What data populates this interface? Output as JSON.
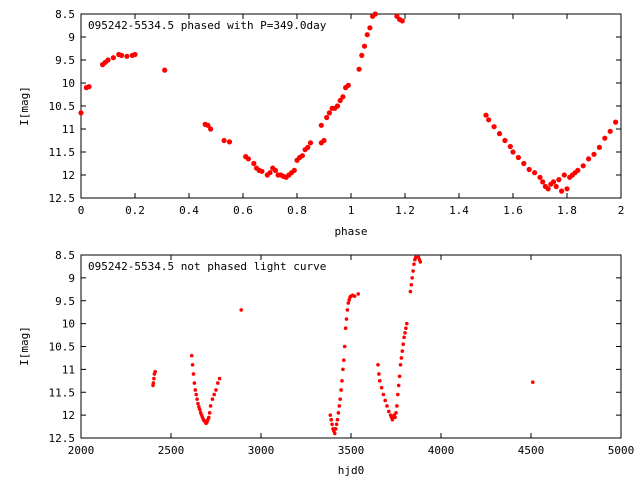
{
  "chart_data": [
    {
      "type": "scatter",
      "title": "095242-5534.5 phased with P=349.0day",
      "xlabel": "phase",
      "ylabel": "I[mag]",
      "xlim": [
        0,
        2
      ],
      "ylim": [
        12.5,
        8.5
      ],
      "y_inverted": true,
      "xticks": [
        "0",
        "0.2",
        "0.4",
        "0.6",
        "0.8",
        "1",
        "1.2",
        "1.4",
        "1.6",
        "1.8",
        "2"
      ],
      "yticks": [
        "8.5",
        "9",
        "9.5",
        "10",
        "10.5",
        "11",
        "11.5",
        "12",
        "12.5"
      ],
      "marker_color": "#ff0000",
      "grid": false,
      "series": [
        {
          "points": [
            [
              0.0,
              10.65
            ],
            [
              0.02,
              10.1
            ],
            [
              0.03,
              10.08
            ],
            [
              0.08,
              9.6
            ],
            [
              0.09,
              9.55
            ],
            [
              0.1,
              9.5
            ],
            [
              0.12,
              9.45
            ],
            [
              0.14,
              9.38
            ],
            [
              0.15,
              9.4
            ],
            [
              0.17,
              9.42
            ],
            [
              0.19,
              9.4
            ],
            [
              0.2,
              9.38
            ],
            [
              0.31,
              9.72
            ],
            [
              0.46,
              10.9
            ],
            [
              0.47,
              10.92
            ],
            [
              0.48,
              11.0
            ],
            [
              0.53,
              11.25
            ],
            [
              0.55,
              11.28
            ],
            [
              0.61,
              11.6
            ],
            [
              0.62,
              11.65
            ],
            [
              0.64,
              11.75
            ],
            [
              0.65,
              11.85
            ],
            [
              0.66,
              11.9
            ],
            [
              0.67,
              11.92
            ],
            [
              0.69,
              12.0
            ],
            [
              0.7,
              11.95
            ],
            [
              0.71,
              11.85
            ],
            [
              0.72,
              11.9
            ],
            [
              0.73,
              12.0
            ],
            [
              0.74,
              12.0
            ],
            [
              0.75,
              12.03
            ],
            [
              0.76,
              12.05
            ],
            [
              0.77,
              12.0
            ],
            [
              0.78,
              11.95
            ],
            [
              0.79,
              11.9
            ],
            [
              0.8,
              11.68
            ],
            [
              0.81,
              11.62
            ],
            [
              0.82,
              11.58
            ],
            [
              0.83,
              11.45
            ],
            [
              0.84,
              11.4
            ],
            [
              0.85,
              11.3
            ],
            [
              0.89,
              10.92
            ],
            [
              0.89,
              11.3
            ],
            [
              0.9,
              11.25
            ],
            [
              0.91,
              10.75
            ],
            [
              0.92,
              10.65
            ],
            [
              0.93,
              10.55
            ],
            [
              0.94,
              10.55
            ],
            [
              0.95,
              10.5
            ],
            [
              0.96,
              10.38
            ],
            [
              0.97,
              10.3
            ],
            [
              0.98,
              10.1
            ],
            [
              0.99,
              10.05
            ],
            [
              1.03,
              9.7
            ],
            [
              1.04,
              9.4
            ],
            [
              1.05,
              9.2
            ],
            [
              1.06,
              8.95
            ],
            [
              1.07,
              8.8
            ],
            [
              1.08,
              8.55
            ],
            [
              1.09,
              8.5
            ],
            [
              1.17,
              8.55
            ],
            [
              1.18,
              8.62
            ],
            [
              1.19,
              8.65
            ],
            [
              1.5,
              10.7
            ],
            [
              1.51,
              10.8
            ],
            [
              1.53,
              10.95
            ],
            [
              1.55,
              11.1
            ],
            [
              1.57,
              11.25
            ],
            [
              1.59,
              11.38
            ],
            [
              1.6,
              11.5
            ],
            [
              1.62,
              11.62
            ],
            [
              1.64,
              11.75
            ],
            [
              1.66,
              11.88
            ],
            [
              1.68,
              11.95
            ],
            [
              1.7,
              12.05
            ],
            [
              1.71,
              12.15
            ],
            [
              1.72,
              12.25
            ],
            [
              1.73,
              12.3
            ],
            [
              1.74,
              12.2
            ],
            [
              1.75,
              12.15
            ],
            [
              1.76,
              12.25
            ],
            [
              1.77,
              12.1
            ],
            [
              1.78,
              12.35
            ],
            [
              1.79,
              12.0
            ],
            [
              1.8,
              12.3
            ],
            [
              1.81,
              12.05
            ],
            [
              1.82,
              12.0
            ],
            [
              1.83,
              11.95
            ],
            [
              1.84,
              11.9
            ],
            [
              1.86,
              11.8
            ],
            [
              1.88,
              11.65
            ],
            [
              1.9,
              11.55
            ],
            [
              1.92,
              11.4
            ],
            [
              1.94,
              11.2
            ],
            [
              1.96,
              11.05
            ],
            [
              1.98,
              10.85
            ]
          ]
        }
      ]
    },
    {
      "type": "scatter",
      "title": "095242-5534.5 not phased light curve",
      "xlabel": "hjd0",
      "ylabel": "I[mag]",
      "xlim": [
        2000,
        5000
      ],
      "ylim": [
        12.5,
        8.5
      ],
      "y_inverted": true,
      "xticks": [
        "2000",
        "2500",
        "3000",
        "3500",
        "4000",
        "4500",
        "5000"
      ],
      "yticks": [
        "8.5",
        "9",
        "9.5",
        "10",
        "10.5",
        "11",
        "11.5",
        "12",
        "12.5"
      ],
      "marker_color": "#ff0000",
      "grid": false,
      "series": [
        {
          "points": [
            [
              2400,
              11.35
            ],
            [
              2402,
              11.3
            ],
            [
              2405,
              11.2
            ],
            [
              2408,
              11.1
            ],
            [
              2412,
              11.05
            ],
            [
              2615,
              10.7
            ],
            [
              2620,
              10.9
            ],
            [
              2625,
              11.1
            ],
            [
              2630,
              11.3
            ],
            [
              2635,
              11.45
            ],
            [
              2640,
              11.55
            ],
            [
              2645,
              11.65
            ],
            [
              2650,
              11.75
            ],
            [
              2655,
              11.82
            ],
            [
              2660,
              11.88
            ],
            [
              2665,
              11.95
            ],
            [
              2670,
              12.0
            ],
            [
              2675,
              12.05
            ],
            [
              2680,
              12.1
            ],
            [
              2685,
              12.12
            ],
            [
              2690,
              12.15
            ],
            [
              2695,
              12.18
            ],
            [
              2700,
              12.15
            ],
            [
              2705,
              12.1
            ],
            [
              2710,
              12.05
            ],
            [
              2715,
              11.95
            ],
            [
              2720,
              11.8
            ],
            [
              2730,
              11.65
            ],
            [
              2740,
              11.55
            ],
            [
              2750,
              11.45
            ],
            [
              2760,
              11.3
            ],
            [
              2770,
              11.2
            ],
            [
              2890,
              9.7
            ],
            [
              3385,
              12.0
            ],
            [
              3390,
              12.1
            ],
            [
              3395,
              12.2
            ],
            [
              3400,
              12.3
            ],
            [
              3405,
              12.35
            ],
            [
              3410,
              12.4
            ],
            [
              3415,
              12.3
            ],
            [
              3420,
              12.2
            ],
            [
              3425,
              12.1
            ],
            [
              3430,
              11.95
            ],
            [
              3435,
              11.8
            ],
            [
              3440,
              11.65
            ],
            [
              3445,
              11.45
            ],
            [
              3450,
              11.25
            ],
            [
              3455,
              11.0
            ],
            [
              3460,
              10.8
            ],
            [
              3465,
              10.5
            ],
            [
              3470,
              10.1
            ],
            [
              3475,
              9.9
            ],
            [
              3480,
              9.7
            ],
            [
              3485,
              9.55
            ],
            [
              3490,
              9.48
            ],
            [
              3495,
              9.42
            ],
            [
              3500,
              9.4
            ],
            [
              3510,
              9.38
            ],
            [
              3520,
              9.4
            ],
            [
              3540,
              9.35
            ],
            [
              3650,
              10.9
            ],
            [
              3655,
              11.1
            ],
            [
              3660,
              11.25
            ],
            [
              3670,
              11.4
            ],
            [
              3680,
              11.55
            ],
            [
              3690,
              11.68
            ],
            [
              3700,
              11.8
            ],
            [
              3710,
              11.92
            ],
            [
              3720,
              12.0
            ],
            [
              3725,
              12.05
            ],
            [
              3730,
              12.1
            ],
            [
              3735,
              12.05
            ],
            [
              3740,
              12.0
            ],
            [
              3745,
              12.05
            ],
            [
              3750,
              11.95
            ],
            [
              3755,
              11.8
            ],
            [
              3760,
              11.55
            ],
            [
              3765,
              11.35
            ],
            [
              3770,
              11.15
            ],
            [
              3775,
              10.9
            ],
            [
              3780,
              10.75
            ],
            [
              3785,
              10.6
            ],
            [
              3790,
              10.45
            ],
            [
              3795,
              10.3
            ],
            [
              3800,
              10.2
            ],
            [
              3805,
              10.1
            ],
            [
              3810,
              10.0
            ],
            [
              3830,
              9.3
            ],
            [
              3835,
              9.15
            ],
            [
              3840,
              9.0
            ],
            [
              3845,
              8.85
            ],
            [
              3850,
              8.7
            ],
            [
              3855,
              8.6
            ],
            [
              3860,
              8.55
            ],
            [
              3875,
              8.55
            ],
            [
              3880,
              8.6
            ],
            [
              3885,
              8.65
            ],
            [
              4510,
              11.28
            ]
          ]
        }
      ]
    }
  ]
}
